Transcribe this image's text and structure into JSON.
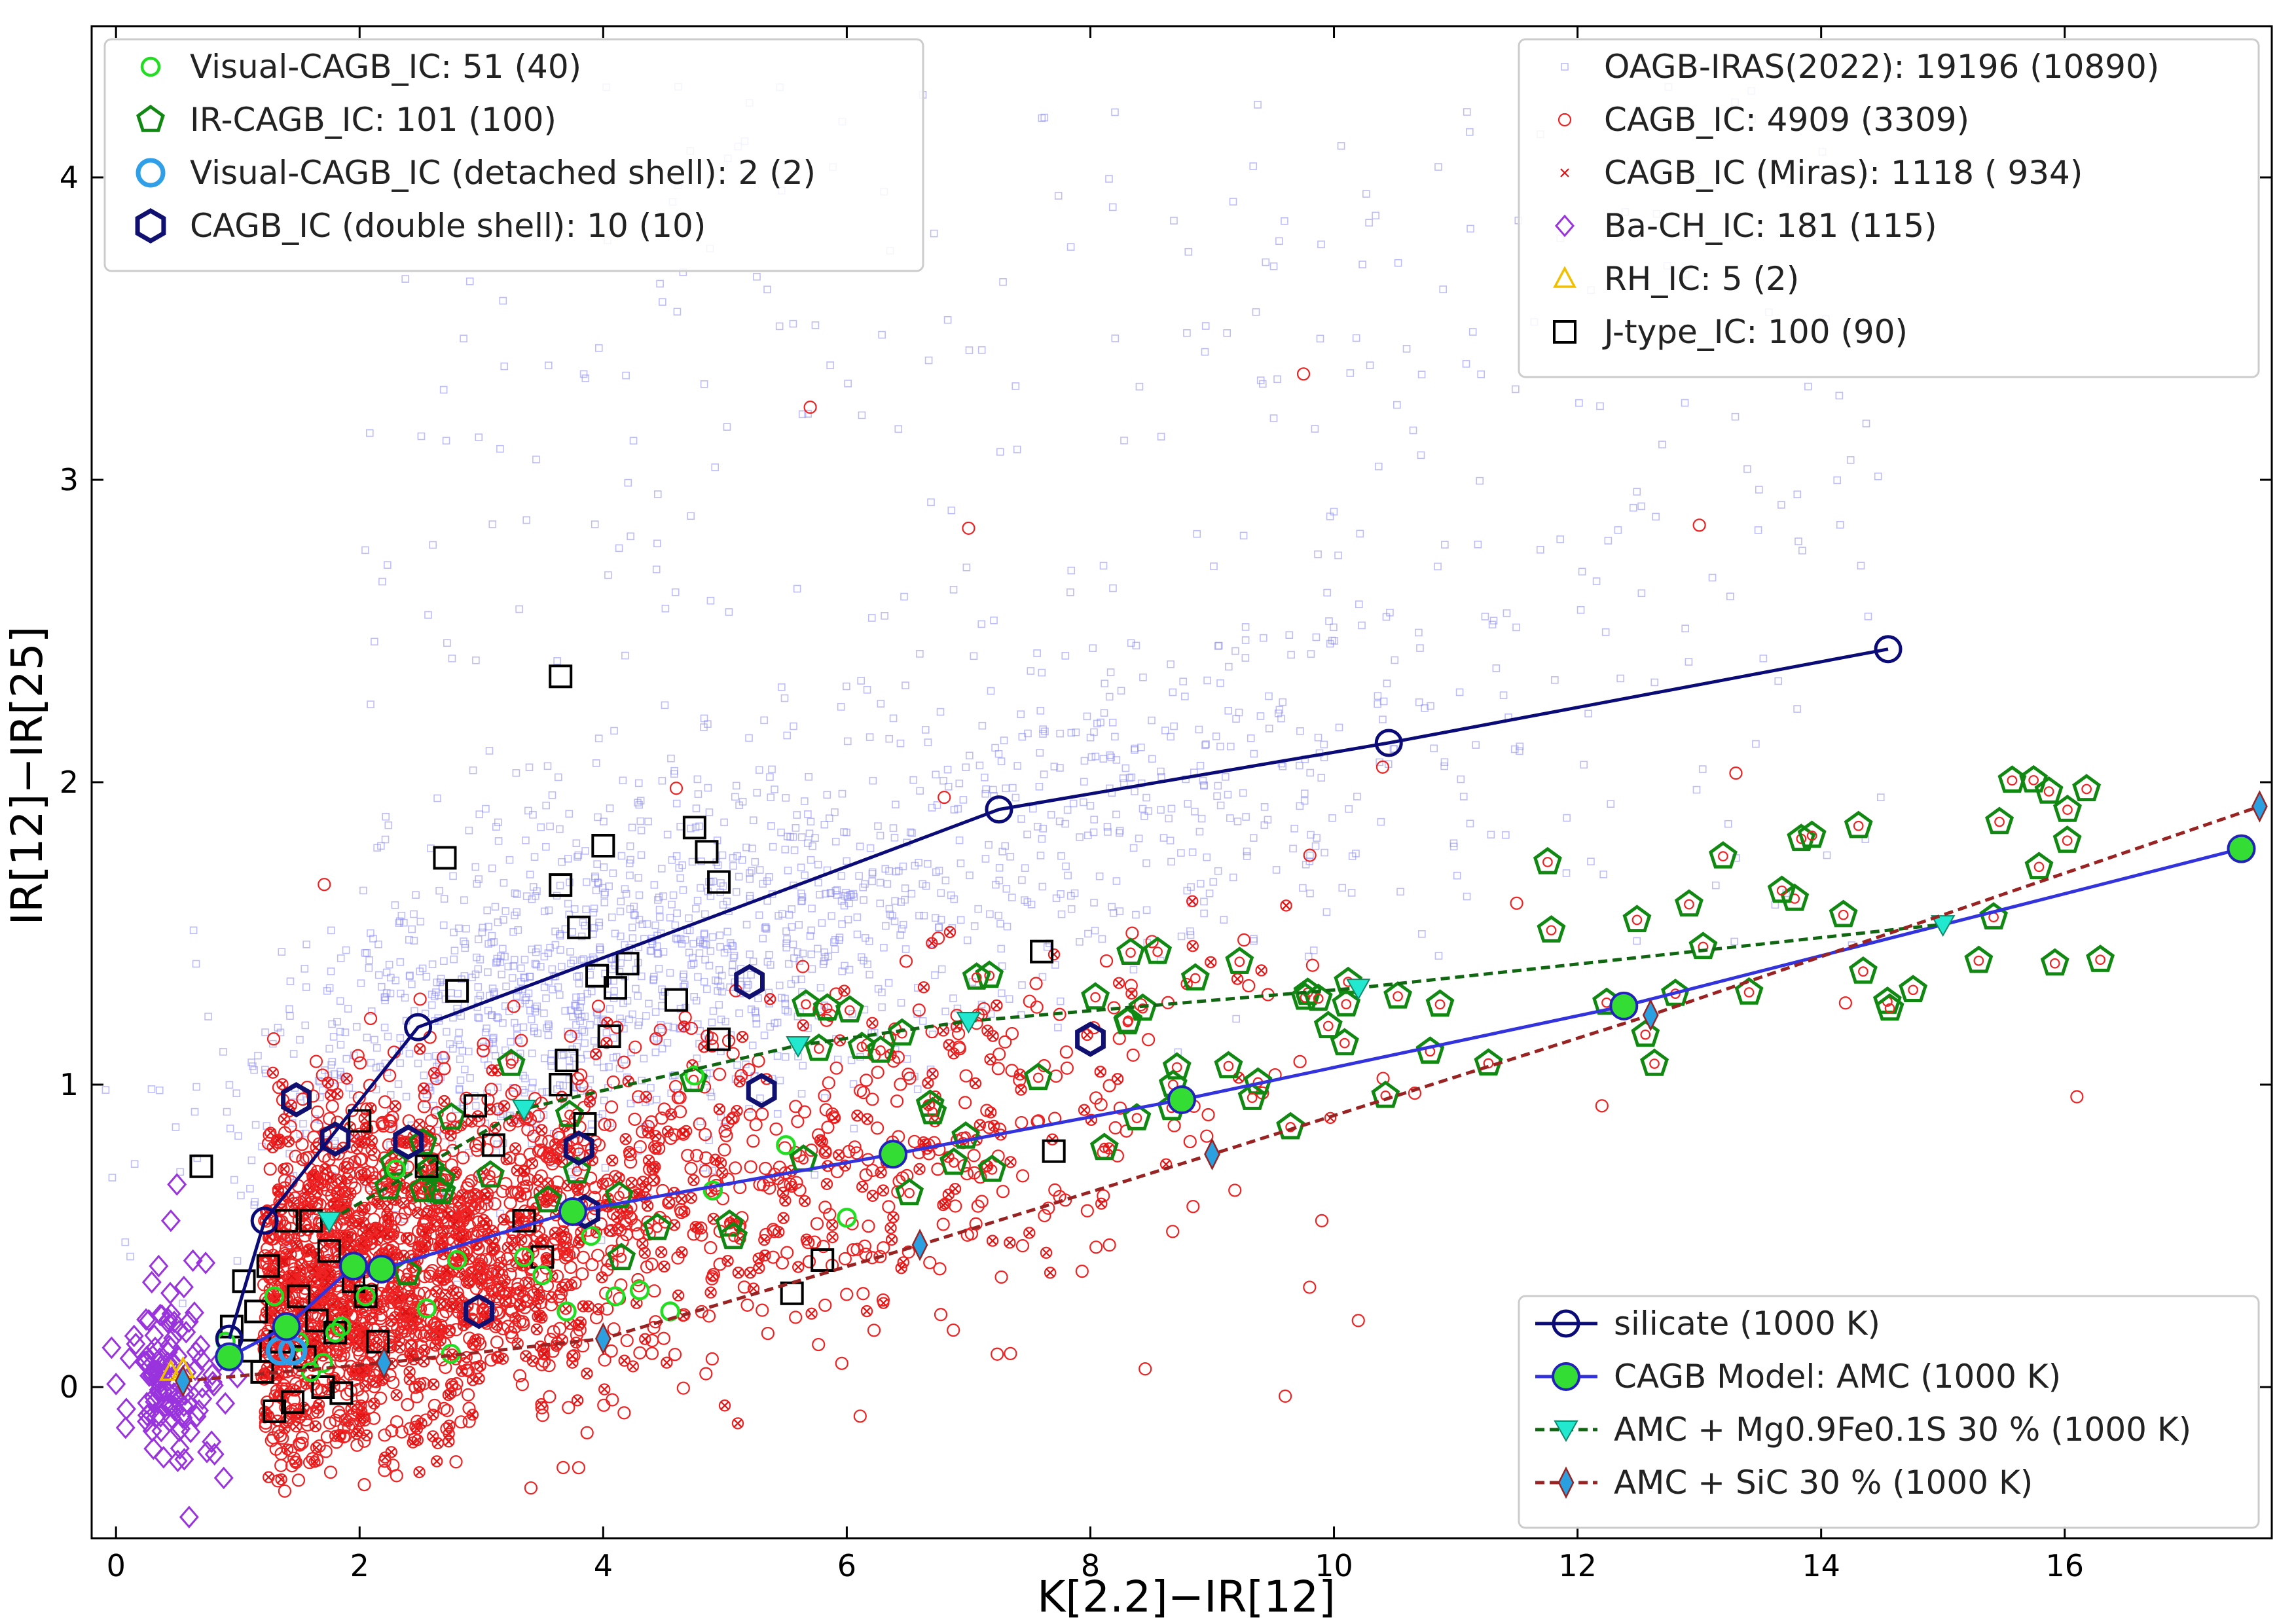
{
  "chart_data": {
    "type": "scatter",
    "xlabel": "K[2.2]−IR[12]",
    "ylabel": "IR[12]−IR[25]",
    "xlim": [
      -0.2,
      17.7
    ],
    "ylim": [
      -0.5,
      4.5
    ],
    "xticks": [
      0,
      2,
      4,
      6,
      8,
      10,
      12,
      14,
      16
    ],
    "yticks": [
      0,
      1,
      2,
      3,
      4
    ],
    "legend_upper_left": [
      {
        "key": "visual",
        "label": "Visual-CAGB_IC: 51 (40)",
        "color": "#22dd22",
        "marker": "circle"
      },
      {
        "key": "ir",
        "label": "IR-CAGB_IC: 101 (100)",
        "color": "#118811",
        "marker": "pentagon"
      },
      {
        "key": "detached",
        "label": "Visual-CAGB_IC (detached shell): 2 (2)",
        "color": "#2f9fe8",
        "marker": "circle"
      },
      {
        "key": "double",
        "label": "CAGB_IC (double shell): 10 (10)",
        "color": "#101070",
        "marker": "hexagon"
      }
    ],
    "legend_upper_right": [
      {
        "key": "oagb",
        "label": "OAGB-IRAS(2022): 19196 (10890)",
        "color": "#7777ee",
        "marker": "square-small"
      },
      {
        "key": "cagb",
        "label": "CAGB_IC: 4909 (3309)",
        "color": "#ee2222",
        "marker": "circle-small"
      },
      {
        "key": "miras",
        "label": "CAGB_IC (Miras): 1118 ( 934)",
        "color": "#dd1111",
        "marker": "x"
      },
      {
        "key": "bach",
        "label": "Ba-CH_IC: 181 (115)",
        "color": "#9933dd",
        "marker": "diamond"
      },
      {
        "key": "rh",
        "label": "RH_IC: 5 (2)",
        "color": "#f0c000",
        "marker": "triangle"
      },
      {
        "key": "jtype",
        "label": "J-type_IC: 100 (90)",
        "color": "#000000",
        "marker": "square"
      }
    ],
    "legend_lower_right": [
      {
        "key": "silicate",
        "label": "silicate (1000 K)",
        "color": "#0b0b78",
        "marker": "circle-open",
        "dash": false
      },
      {
        "key": "amc",
        "label": "CAGB Model: AMC (1000 K)",
        "color": "#3333dd",
        "marker": "circle-green",
        "dash": false
      },
      {
        "key": "mgfes",
        "label": "AMC + Mg0.9Fe0.1S 30 % (1000 K)",
        "color": "#116611",
        "marker": "triangle-down",
        "dash": true
      },
      {
        "key": "sic",
        "label": "AMC + SiC 30 % (1000 K)",
        "color": "#992222",
        "marker": "diamond-blue",
        "dash": true
      }
    ],
    "models": {
      "silicate": {
        "x": [
          0.93,
          1.22,
          2.48,
          7.25,
          10.45,
          14.55
        ],
        "y": [
          0.16,
          0.55,
          1.19,
          1.91,
          2.13,
          2.44
        ]
      },
      "amc": {
        "x": [
          0.93,
          1.4,
          1.95,
          2.18,
          3.75,
          6.38,
          8.75,
          12.38,
          17.45
        ],
        "y": [
          0.1,
          0.2,
          0.4,
          0.39,
          0.58,
          0.77,
          0.95,
          1.26,
          1.78
        ]
      },
      "mgfes": {
        "x": [
          1.75,
          3.35,
          5.6,
          7.0,
          10.2,
          15.0
        ],
        "y": [
          0.55,
          0.92,
          1.13,
          1.21,
          1.32,
          1.53
        ]
      },
      "sic": {
        "x": [
          0.55,
          2.2,
          4.0,
          6.6,
          9.0,
          12.6,
          17.6
        ],
        "y": [
          0.02,
          0.08,
          0.16,
          0.47,
          0.77,
          1.23,
          1.92
        ]
      }
    },
    "jtype_points": [
      [
        0.7,
        0.73
      ],
      [
        0.95,
        0.2
      ],
      [
        1.05,
        0.35
      ],
      [
        1.1,
        0.12
      ],
      [
        1.15,
        0.25
      ],
      [
        1.2,
        0.05
      ],
      [
        1.25,
        0.4
      ],
      [
        1.3,
        -0.08
      ],
      [
        1.35,
        0.15
      ],
      [
        1.4,
        0.55
      ],
      [
        1.45,
        -0.05
      ],
      [
        1.5,
        0.3
      ],
      [
        1.55,
        0.1
      ],
      [
        1.6,
        0.55
      ],
      [
        1.65,
        0.22
      ],
      [
        1.7,
        0.0
      ],
      [
        1.75,
        0.45
      ],
      [
        1.8,
        0.18
      ],
      [
        1.85,
        -0.02
      ],
      [
        1.95,
        0.35
      ],
      [
        2.0,
        0.88
      ],
      [
        2.05,
        0.3
      ],
      [
        2.15,
        0.15
      ],
      [
        2.7,
        1.75
      ],
      [
        2.8,
        1.31
      ],
      [
        2.55,
        0.73
      ],
      [
        2.95,
        0.93
      ],
      [
        3.1,
        0.8
      ],
      [
        3.35,
        0.55
      ],
      [
        3.5,
        0.43
      ],
      [
        3.65,
        2.35
      ],
      [
        3.65,
        1.66
      ],
      [
        3.7,
        1.08
      ],
      [
        3.65,
        1.0
      ],
      [
        3.8,
        1.52
      ],
      [
        3.85,
        0.87
      ],
      [
        3.95,
        1.36
      ],
      [
        4.0,
        1.79
      ],
      [
        4.05,
        1.16
      ],
      [
        4.1,
        1.32
      ],
      [
        4.2,
        1.4
      ],
      [
        4.6,
        1.28
      ],
      [
        4.75,
        1.85
      ],
      [
        4.85,
        1.77
      ],
      [
        4.95,
        1.67
      ],
      [
        4.95,
        1.15
      ],
      [
        5.55,
        0.31
      ],
      [
        5.8,
        0.42
      ],
      [
        7.6,
        1.44
      ],
      [
        7.7,
        0.78
      ]
    ],
    "double_points": [
      [
        1.48,
        0.95
      ],
      [
        1.8,
        0.82
      ],
      [
        2.4,
        0.81
      ],
      [
        2.98,
        0.25
      ],
      [
        3.8,
        0.79
      ],
      [
        3.85,
        0.58
      ],
      [
        5.2,
        1.34
      ],
      [
        5.3,
        0.98
      ],
      [
        8.0,
        1.15
      ]
    ],
    "detached_points": [
      [
        1.35,
        0.12
      ],
      [
        1.45,
        0.12
      ]
    ],
    "visual_points": [
      [
        0.9,
        0.15
      ],
      [
        1.3,
        0.3
      ],
      [
        1.5,
        0.15
      ],
      [
        1.6,
        0.05
      ],
      [
        1.7,
        0.08
      ],
      [
        1.8,
        0.18
      ],
      [
        1.85,
        0.2
      ],
      [
        2.05,
        0.3
      ],
      [
        2.55,
        0.26
      ],
      [
        2.75,
        0.11
      ],
      [
        3.35,
        0.43
      ],
      [
        3.5,
        0.37
      ],
      [
        3.7,
        0.25
      ],
      [
        3.9,
        0.5
      ],
      [
        4.1,
        0.3
      ],
      [
        4.3,
        0.32
      ],
      [
        4.55,
        0.25
      ],
      [
        4.75,
        1.03
      ],
      [
        4.9,
        0.65
      ],
      [
        5.5,
        0.8
      ],
      [
        6.0,
        0.56
      ],
      [
        2.3,
        0.72
      ],
      [
        2.8,
        0.42
      ]
    ],
    "rh_points": [
      [
        0.45,
        0.05
      ],
      [
        0.55,
        0.06
      ]
    ]
  }
}
